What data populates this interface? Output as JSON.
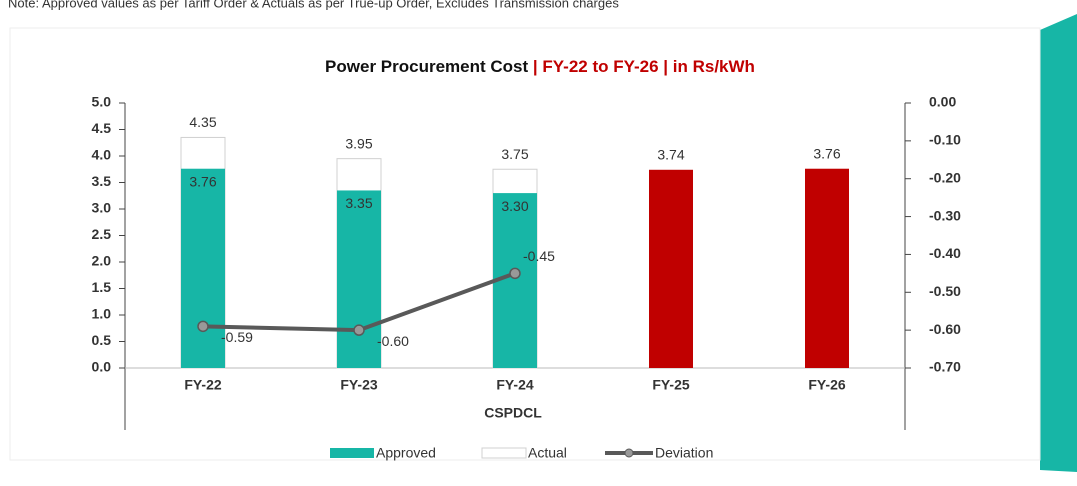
{
  "note": "Note: Approved values as per Tariff Order & Actuals as per True-up Order, Excludes Transmission charges",
  "chart_data": {
    "type": "bar",
    "title": "Power Procurement Cost",
    "title_highlight": "| FY-22 to FY-26 | in Rs/kWh",
    "xlabel": "CSPDCL",
    "categories": [
      "FY-22",
      "FY-23",
      "FY-24",
      "FY-25",
      "FY-26"
    ],
    "series": [
      {
        "name": "Approved",
        "type": "bar",
        "color": "#17b6a6",
        "colors": [
          "#17b6a6",
          "#17b6a6",
          "#17b6a6",
          "#c00000",
          "#c00000"
        ],
        "values": [
          3.76,
          3.35,
          3.3,
          3.74,
          3.76
        ],
        "value_labels": [
          "3.76",
          "3.35",
          "3.30",
          "3.74",
          "3.76"
        ]
      },
      {
        "name": "Actual",
        "type": "bar",
        "color": "#ffffff",
        "values": [
          4.35,
          3.95,
          3.75,
          null,
          null
        ],
        "value_labels": [
          "4.35",
          "3.95",
          "3.75",
          null,
          null
        ]
      },
      {
        "name": "Deviation",
        "type": "line",
        "axis": "y2",
        "color": "#595959",
        "values": [
          -0.59,
          -0.6,
          -0.45,
          null,
          null
        ],
        "value_labels": [
          "-0.59",
          "-0.60",
          "-0.45",
          null,
          null
        ]
      }
    ],
    "ylim": [
      0,
      5
    ],
    "yticks": [
      {
        "value": 0,
        "label": "0.0"
      },
      0.5,
      {
        "value": 1,
        "label": "1.0"
      },
      1.5,
      {
        "value": 2,
        "label": "2.0"
      },
      2.5,
      {
        "value": 3,
        "label": "3.0"
      },
      3.5,
      {
        "value": 4,
        "label": "4.0"
      },
      4.5,
      {
        "value": 5,
        "label": "5.0"
      }
    ],
    "y2lim": [
      -0.7,
      0
    ],
    "y2ticks": [
      {
        "value": 0,
        "label": "0.00"
      },
      {
        "value": -0.1,
        "label": "-0.10"
      },
      {
        "value": -0.2,
        "label": "-0.20"
      },
      {
        "value": -0.3,
        "label": "-0.30"
      },
      {
        "value": -0.4,
        "label": "-0.40"
      },
      {
        "value": -0.5,
        "label": "-0.50"
      },
      {
        "value": -0.6,
        "label": "-0.60"
      },
      {
        "value": -0.7,
        "label": "-0.70"
      }
    ],
    "legend": "bottom",
    "grid": false
  }
}
